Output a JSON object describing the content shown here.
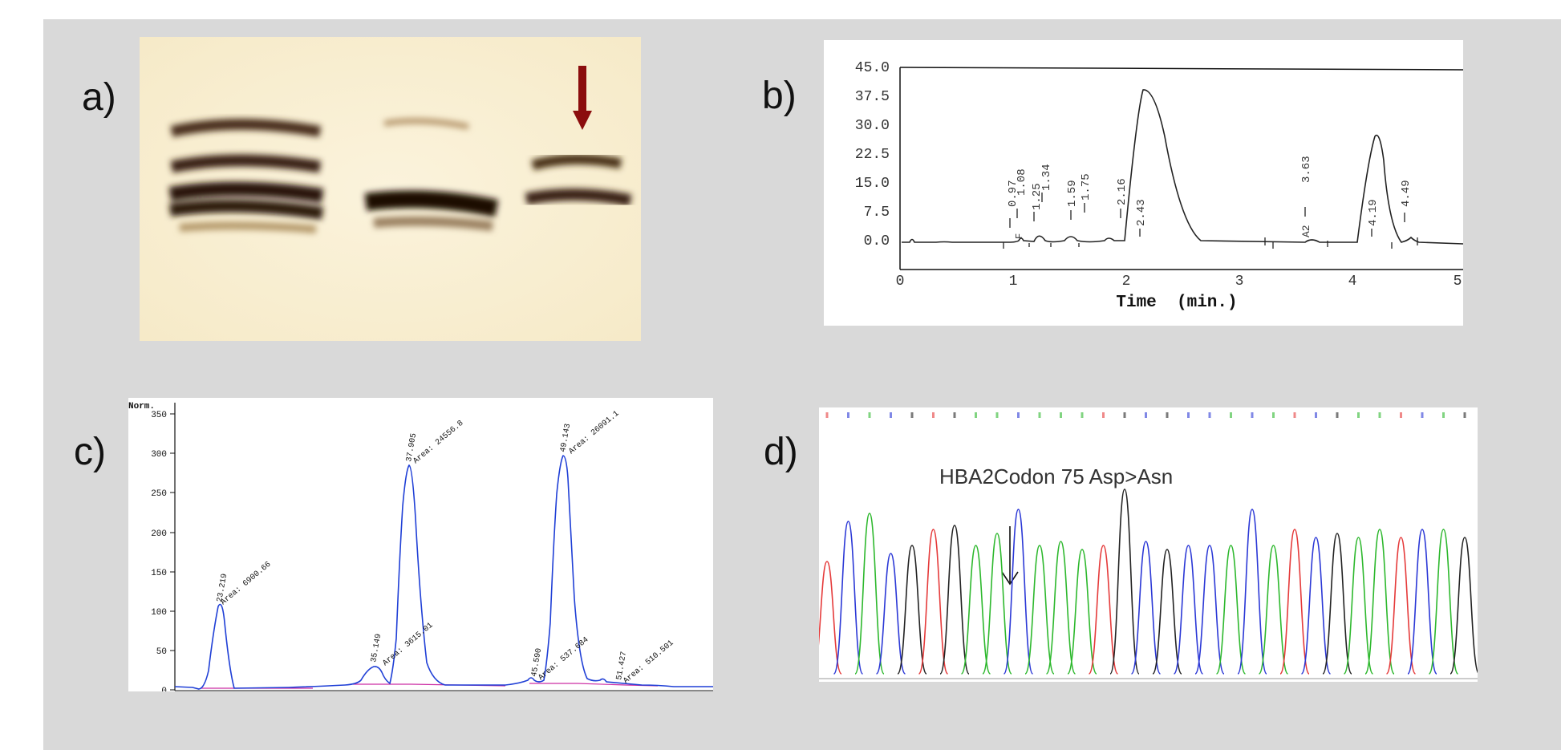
{
  "panels": {
    "a": {
      "label": "a)"
    },
    "b": {
      "label": "b)"
    },
    "c": {
      "label": "c)"
    },
    "d": {
      "label": "d)"
    }
  },
  "chart_b": {
    "y_ticks": [
      "45.0",
      "37.5",
      "30.0",
      "22.5",
      "15.0",
      "7.5",
      "0.0"
    ],
    "x_ticks": [
      "0",
      "1",
      "2",
      "3",
      "4",
      "5"
    ],
    "xlabel": "Time  (min.)",
    "peak_labels": [
      "0.97",
      "1.08",
      "1.25",
      "1.34",
      "1.59",
      "1.75",
      "2.16",
      "2.43",
      "3.63",
      "4.19",
      "4.49"
    ],
    "marker_labels": [
      "F",
      "A2"
    ],
    "colors": {
      "line": "#222222"
    }
  },
  "chart_c": {
    "y_axis_label": "Norm.",
    "y_ticks": [
      "350",
      "300",
      "250",
      "200",
      "150",
      "100",
      "50",
      "0"
    ],
    "peak_labels": [
      "23.219",
      "35.149",
      "37.905",
      "45.590",
      "49.143",
      "51.427"
    ],
    "area_labels": [
      "Area: 6900.66",
      "Area: 3615.01",
      "Area: 24556.8",
      "Area: 537.684",
      "Area: 26091.1",
      "Area: 510.501"
    ],
    "colors": {
      "trace": "#1f3fd6",
      "baseline": "#cc2fa5"
    }
  },
  "chart_d": {
    "annotation": "HBA2Codon 75 Asp>Asn",
    "colors": {
      "A": "#2db82d",
      "C": "#2b38d6",
      "G": "#222222",
      "T": "#e53a3a"
    }
  },
  "colors": {
    "background": "#d9d9d9",
    "arrow": "#8b0d0d"
  }
}
